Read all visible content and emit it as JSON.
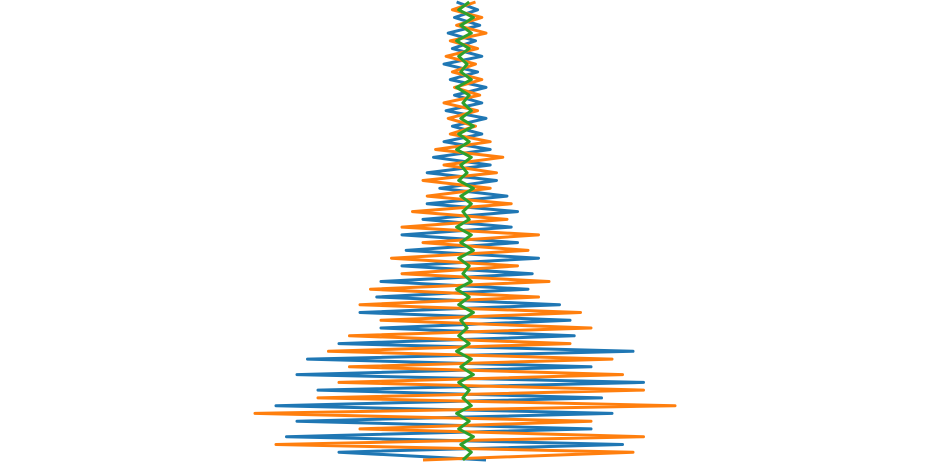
{
  "chart_data": {
    "type": "line",
    "orientation": "vertical",
    "xlim": [
      -1,
      1
    ],
    "ylim": [
      0,
      59
    ],
    "series": [
      {
        "color": "#1f77b4",
        "values": [
          -0.04,
          0.06,
          -0.05,
          0.07,
          -0.08,
          0.05,
          -0.06,
          0.08,
          -0.1,
          0.06,
          -0.07,
          0.1,
          -0.05,
          0.08,
          -0.09,
          0.1,
          -0.06,
          0.08,
          -0.1,
          0.12,
          -0.15,
          0.12,
          -0.18,
          0.15,
          -0.12,
          0.2,
          -0.18,
          0.25,
          -0.2,
          0.22,
          -0.3,
          0.25,
          -0.28,
          0.35,
          -0.3,
          0.32,
          -0.4,
          0.3,
          -0.42,
          0.45,
          -0.5,
          0.5,
          -0.4,
          0.52,
          -0.6,
          0.8,
          -0.75,
          0.6,
          -0.8,
          0.85,
          -0.7,
          0.65,
          -0.9,
          0.7,
          -0.8,
          0.6,
          -0.85,
          0.75,
          -0.6,
          0.1
        ]
      },
      {
        "color": "#ff7f0e",
        "values": [
          0.05,
          -0.06,
          0.08,
          -0.04,
          0.1,
          -0.07,
          0.06,
          -0.09,
          0.05,
          -0.06,
          0.08,
          -0.05,
          0.07,
          -0.1,
          0.06,
          -0.08,
          0.05,
          -0.07,
          0.12,
          -0.14,
          0.18,
          -0.1,
          0.15,
          -0.2,
          0.12,
          -0.18,
          0.22,
          -0.25,
          0.2,
          -0.3,
          0.35,
          -0.2,
          0.3,
          -0.35,
          0.25,
          -0.3,
          0.4,
          -0.45,
          0.35,
          -0.5,
          0.55,
          -0.4,
          0.6,
          -0.55,
          0.5,
          -0.65,
          0.7,
          -0.55,
          0.75,
          -0.6,
          0.85,
          -0.7,
          1.0,
          -1.0,
          0.6,
          -0.5,
          0.85,
          -0.9,
          0.8,
          -0.2
        ]
      },
      {
        "color": "#2ca02c",
        "values": [
          0.02,
          -0.03,
          0.04,
          -0.02,
          0.03,
          -0.04,
          0.02,
          -0.03,
          0.01,
          -0.02,
          0.03,
          -0.04,
          0.02,
          -0.01,
          0.03,
          -0.02,
          0.04,
          -0.03,
          0.02,
          -0.04,
          0.03,
          -0.02,
          0.01,
          -0.03,
          0.04,
          -0.02,
          0.03,
          -0.01,
          0.02,
          -0.04,
          0.03,
          -0.02,
          0.04,
          -0.03,
          0.02,
          -0.01,
          0.03,
          -0.04,
          0.02,
          -0.03,
          0.04,
          -0.02,
          0.01,
          -0.03,
          0.02,
          -0.04,
          0.03,
          -0.02,
          0.04,
          -0.03,
          0.02,
          -0.01,
          0.03,
          -0.04,
          0.02,
          -0.03,
          0.04,
          -0.02,
          0.03,
          -0.01
        ]
      }
    ]
  }
}
